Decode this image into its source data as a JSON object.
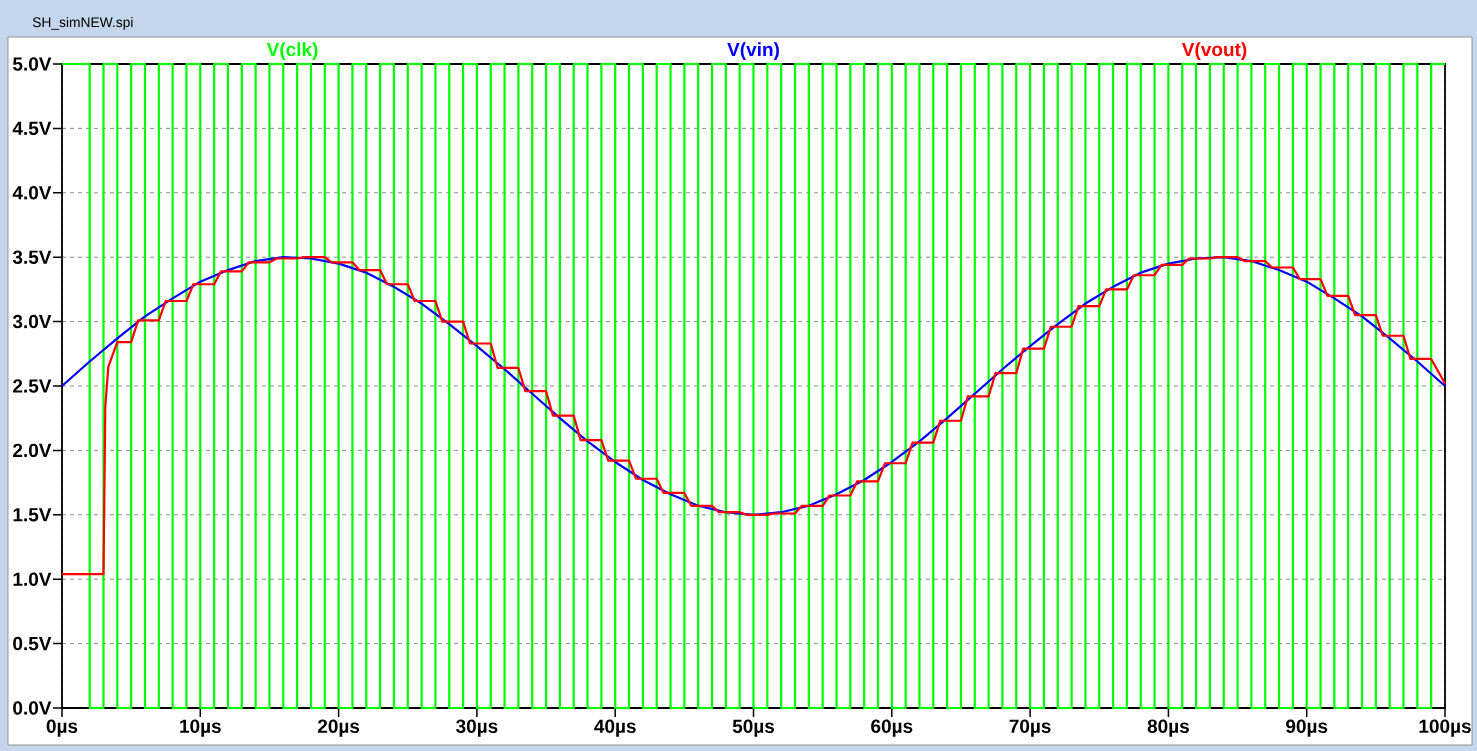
{
  "chart_data": {
    "type": "line",
    "title": "SH_simNEW.spi",
    "xlim": [
      0,
      100
    ],
    "ylim": [
      0,
      5
    ],
    "xticks": [
      {
        "value": 0,
        "label": "0µs"
      },
      {
        "value": 10,
        "label": "10µs"
      },
      {
        "value": 20,
        "label": "20µs"
      },
      {
        "value": 30,
        "label": "30µs"
      },
      {
        "value": 40,
        "label": "40µs"
      },
      {
        "value": 50,
        "label": "50µs"
      },
      {
        "value": 60,
        "label": "60µs"
      },
      {
        "value": 70,
        "label": "70µs"
      },
      {
        "value": 80,
        "label": "80µs"
      },
      {
        "value": 90,
        "label": "90µs"
      },
      {
        "value": 100,
        "label": "100µs"
      }
    ],
    "yticks": [
      {
        "value": 0,
        "label": "0.0V"
      },
      {
        "value": 0.5,
        "label": "0.5V"
      },
      {
        "value": 1,
        "label": "1.0V"
      },
      {
        "value": 1.5,
        "label": "1.5V"
      },
      {
        "value": 2,
        "label": "2.0V"
      },
      {
        "value": 2.5,
        "label": "2.5V"
      },
      {
        "value": 3,
        "label": "3.0V"
      },
      {
        "value": 3.5,
        "label": "3.5V"
      },
      {
        "value": 4,
        "label": "4.0V"
      },
      {
        "value": 4.5,
        "label": "4.5V"
      },
      {
        "value": 5,
        "label": "5.0V"
      }
    ],
    "grid": true,
    "legend": "top",
    "series": [
      {
        "name": "V(clk)",
        "type": "step",
        "color": "#00ff00",
        "x": [
          0,
          2,
          3,
          4,
          5,
          6,
          7,
          8,
          9,
          10,
          11,
          12,
          13,
          14,
          15,
          16,
          17,
          18,
          19,
          20,
          21,
          22,
          23,
          24,
          25,
          26,
          27,
          28,
          29,
          30,
          31,
          32,
          33,
          34,
          35,
          36,
          37,
          38,
          39,
          40,
          41,
          42,
          43,
          44,
          45,
          46,
          47,
          48,
          49,
          50,
          51,
          52,
          53,
          54,
          55,
          56,
          57,
          58,
          59,
          60,
          61,
          62,
          63,
          64,
          65,
          66,
          67,
          68,
          69,
          70,
          71,
          72,
          73,
          74,
          75,
          76,
          77,
          78,
          79,
          80,
          81,
          82,
          83,
          84,
          85,
          86,
          87,
          88,
          89,
          90,
          91,
          92,
          93,
          94,
          95,
          96,
          97,
          98,
          99,
          100
        ],
        "values": [
          5,
          0,
          5,
          0,
          5,
          0,
          5,
          0,
          5,
          0,
          5,
          0,
          5,
          0,
          5,
          0,
          5,
          0,
          5,
          0,
          5,
          0,
          5,
          0,
          5,
          0,
          5,
          0,
          5,
          0,
          5,
          0,
          5,
          0,
          5,
          0,
          5,
          0,
          5,
          0,
          5,
          0,
          5,
          0,
          5,
          0,
          5,
          0,
          5,
          0,
          5,
          0,
          5,
          0,
          5,
          0,
          5,
          0,
          5,
          0,
          5,
          0,
          5,
          0,
          5,
          0,
          5,
          0,
          5,
          0,
          5,
          0,
          5,
          0,
          5,
          0,
          5,
          0,
          5,
          0,
          5,
          0,
          5,
          0,
          5,
          0,
          5,
          0,
          5,
          0,
          5,
          0,
          5,
          0,
          5,
          0,
          5,
          0,
          5,
          5
        ]
      },
      {
        "name": "V(vin)",
        "color": "#0000ff",
        "x": [
          0,
          2,
          4,
          6,
          8,
          10,
          12,
          14,
          16,
          18,
          20,
          22,
          24,
          26,
          28,
          30,
          32,
          34,
          36,
          38,
          40,
          42,
          44,
          46,
          48,
          50,
          52,
          54,
          56,
          58,
          60,
          62,
          64,
          66,
          68,
          70,
          72,
          74,
          76,
          78,
          80,
          82,
          84,
          86,
          88,
          90,
          92,
          94,
          96,
          98,
          100
        ],
        "values": [
          2.5,
          2.69,
          2.87,
          3.04,
          3.18,
          3.31,
          3.4,
          3.47,
          3.5,
          3.49,
          3.45,
          3.38,
          3.27,
          3.14,
          2.98,
          2.81,
          2.63,
          2.44,
          2.25,
          2.07,
          1.91,
          1.77,
          1.66,
          1.57,
          1.52,
          1.5,
          1.52,
          1.57,
          1.66,
          1.77,
          1.91,
          2.07,
          2.25,
          2.44,
          2.63,
          2.81,
          2.98,
          3.14,
          3.27,
          3.38,
          3.45,
          3.49,
          3.5,
          3.47,
          3.4,
          3.31,
          3.18,
          3.04,
          2.87,
          2.69,
          2.5
        ]
      },
      {
        "name": "V(vout)",
        "color": "#ff0000",
        "x": [
          0,
          3,
          3.13,
          3.35,
          4,
          5,
          5.5,
          7,
          7.5,
          9,
          9.5,
          11,
          11.5,
          13,
          13.5,
          15,
          15.5,
          17,
          17.5,
          19,
          19.5,
          21,
          21.5,
          23,
          23.5,
          25,
          25.5,
          27,
          27.5,
          29,
          29.5,
          31,
          31.5,
          33,
          33.5,
          35,
          35.5,
          37,
          37.5,
          39,
          39.5,
          41,
          41.5,
          43,
          43.5,
          45,
          45.5,
          47,
          47.5,
          49,
          49.5,
          51,
          51.5,
          53,
          53.5,
          55,
          55.5,
          57,
          57.5,
          59,
          59.5,
          61,
          61.5,
          63,
          63.5,
          65,
          65.5,
          67,
          67.5,
          69,
          69.5,
          71,
          71.5,
          73,
          73.5,
          75,
          75.5,
          77,
          77.5,
          79,
          79.5,
          81,
          81.5,
          83,
          83.5,
          85,
          85.5,
          87,
          87.5,
          89,
          89.5,
          91,
          91.5,
          93,
          93.5,
          95,
          95.5,
          97,
          97.5,
          99,
          100
        ],
        "values": [
          1.04,
          1.04,
          2.34,
          2.65,
          2.84,
          2.84,
          3.01,
          3.01,
          3.16,
          3.16,
          3.29,
          3.29,
          3.39,
          3.39,
          3.46,
          3.46,
          3.49,
          3.49,
          3.5,
          3.5,
          3.46,
          3.46,
          3.4,
          3.4,
          3.29,
          3.29,
          3.16,
          3.16,
          3.0,
          3.0,
          2.83,
          2.83,
          2.64,
          2.64,
          2.46,
          2.46,
          2.27,
          2.27,
          2.08,
          2.08,
          1.92,
          1.92,
          1.78,
          1.78,
          1.67,
          1.67,
          1.57,
          1.57,
          1.52,
          1.52,
          1.5,
          1.5,
          1.51,
          1.51,
          1.57,
          1.57,
          1.65,
          1.65,
          1.76,
          1.76,
          1.9,
          1.9,
          2.06,
          2.06,
          2.23,
          2.23,
          2.42,
          2.42,
          2.6,
          2.6,
          2.79,
          2.79,
          2.96,
          2.96,
          3.12,
          3.12,
          3.25,
          3.25,
          3.36,
          3.36,
          3.44,
          3.44,
          3.49,
          3.49,
          3.5,
          3.5,
          3.47,
          3.47,
          3.42,
          3.42,
          3.33,
          3.33,
          3.2,
          3.2,
          3.05,
          3.05,
          2.89,
          2.89,
          2.71,
          2.71,
          2.52
        ]
      }
    ]
  }
}
